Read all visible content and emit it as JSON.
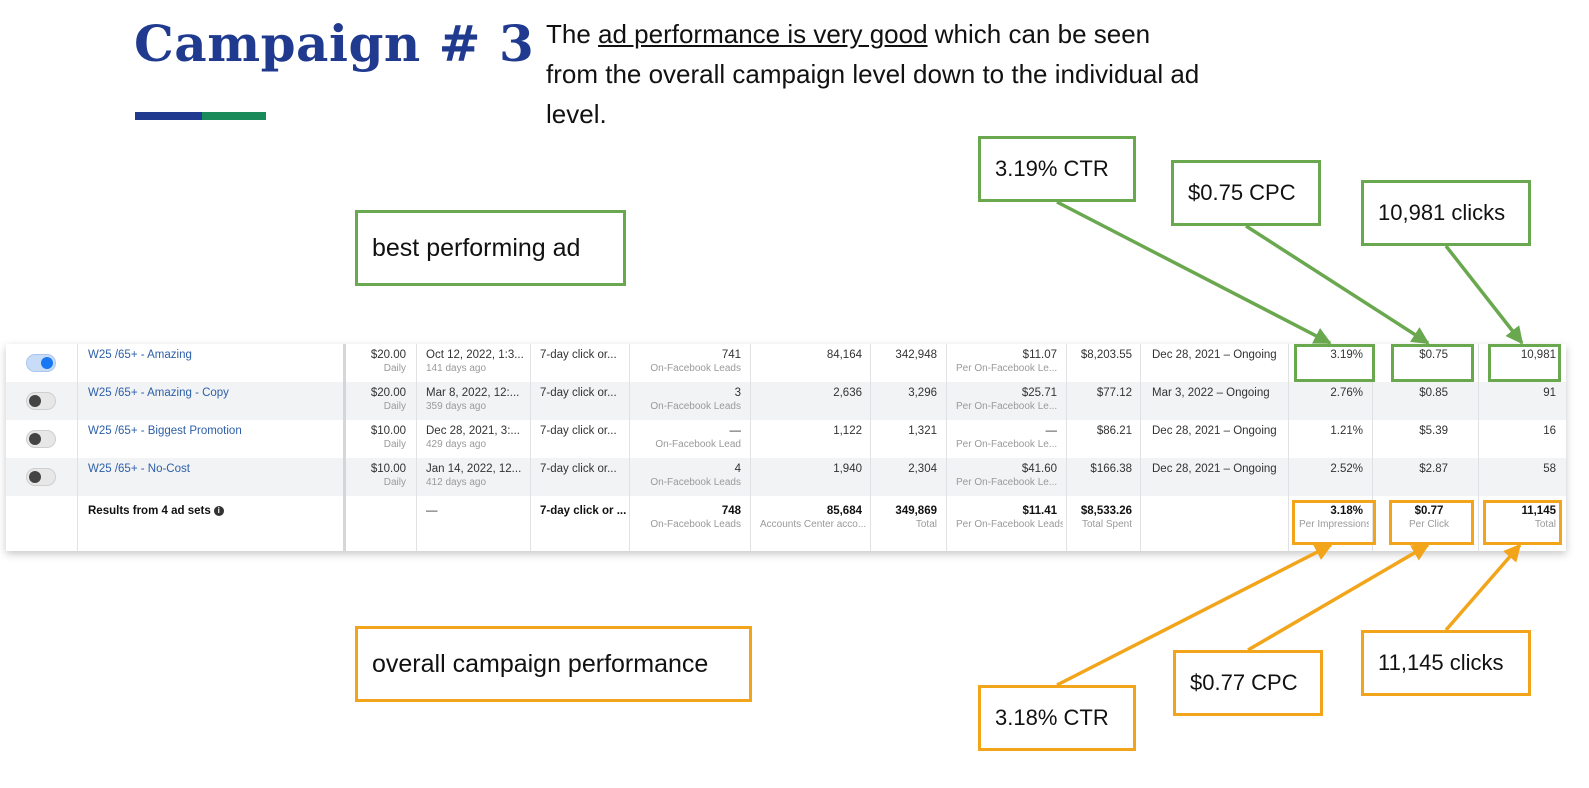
{
  "slide": {
    "title": "Campaign # 3",
    "description": {
      "pre": "The ",
      "underlined": "ad performance is very good",
      "post": " which can be seen from the overall campaign level down to the individual ad level."
    }
  },
  "callouts": {
    "best_ad": "best performing ad",
    "overall": "overall campaign performance",
    "ad_ctr": "3.19% CTR",
    "ad_cpc": "$0.75 CPC",
    "ad_clicks": "10,981 clicks",
    "total_ctr": "3.18% CTR",
    "total_cpc": "$0.77 CPC",
    "total_clicks": "11,145 clicks"
  },
  "colors": {
    "title": "#1f3a8f",
    "accent_green": "#6aa84f",
    "accent_orange": "#f2a51a",
    "link_blue": "#2d5fa8",
    "toggle_on": "#1877f2"
  },
  "table": {
    "rows": [
      {
        "toggle_on": true,
        "name": "W25 /65+ - Amazing",
        "budget": "$20.00",
        "budget_sub": "Daily",
        "date": "Oct 12, 2022, 1:3...",
        "date_sub": "141 days ago",
        "attribution": "7-day click or...",
        "results": "741",
        "results_sub": "On-Facebook Leads",
        "reach": "84,164",
        "impressions": "342,948",
        "cost": "$11.07",
        "cost_sub": "Per On-Facebook Le...",
        "spent": "$8,203.55",
        "schedule": "Dec 28, 2021 – Ongoing",
        "ctr": "3.19%",
        "cpc": "$0.75",
        "clicks": "10,981"
      },
      {
        "toggle_on": false,
        "name": "W25 /65+ - Amazing - Copy",
        "budget": "$20.00",
        "budget_sub": "Daily",
        "date": "Mar 8, 2022, 12:...",
        "date_sub": "359 days ago",
        "attribution": "7-day click or...",
        "results": "3",
        "results_sub": "On-Facebook Leads",
        "reach": "2,636",
        "impressions": "3,296",
        "cost": "$25.71",
        "cost_sub": "Per On-Facebook Le...",
        "spent": "$77.12",
        "schedule": "Mar 3, 2022 – Ongoing",
        "ctr": "2.76%",
        "cpc": "$0.85",
        "clicks": "91"
      },
      {
        "toggle_on": false,
        "name": "W25 /65+ - Biggest Promotion",
        "budget": "$10.00",
        "budget_sub": "Daily",
        "date": "Dec 28, 2021, 3:...",
        "date_sub": "429 days ago",
        "attribution": "7-day click or...",
        "results": "—",
        "results_sub": "On-Facebook Lead",
        "reach": "1,122",
        "impressions": "1,321",
        "cost": "—",
        "cost_sub": "Per On-Facebook Le...",
        "spent": "$86.21",
        "schedule": "Dec 28, 2021 – Ongoing",
        "ctr": "1.21%",
        "cpc": "$5.39",
        "clicks": "16"
      },
      {
        "toggle_on": false,
        "name": "W25 /65+ - No-Cost",
        "budget": "$10.00",
        "budget_sub": "Daily",
        "date": "Jan 14, 2022, 12...",
        "date_sub": "412 days ago",
        "attribution": "7-day click or...",
        "results": "4",
        "results_sub": "On-Facebook Leads",
        "reach": "1,940",
        "impressions": "2,304",
        "cost": "$41.60",
        "cost_sub": "Per On-Facebook Le...",
        "spent": "$166.38",
        "schedule": "Dec 28, 2021 – Ongoing",
        "ctr": "2.52%",
        "cpc": "$2.87",
        "clicks": "58"
      }
    ],
    "summary": {
      "label": "Results from 4 ad sets",
      "date": "—",
      "attribution": "7-day click or ...",
      "results": "748",
      "results_sub": "On-Facebook Leads",
      "reach": "85,684",
      "reach_sub": "Accounts Center acco...",
      "impressions": "349,869",
      "impressions_sub": "Total",
      "cost": "$11.41",
      "cost_sub": "Per On-Facebook Leads",
      "spent": "$8,533.26",
      "spent_sub": "Total Spent",
      "ctr": "3.18%",
      "ctr_sub": "Per Impressions",
      "cpc": "$0.77",
      "cpc_sub": "Per Click",
      "clicks": "11,145",
      "clicks_sub": "Total"
    }
  }
}
